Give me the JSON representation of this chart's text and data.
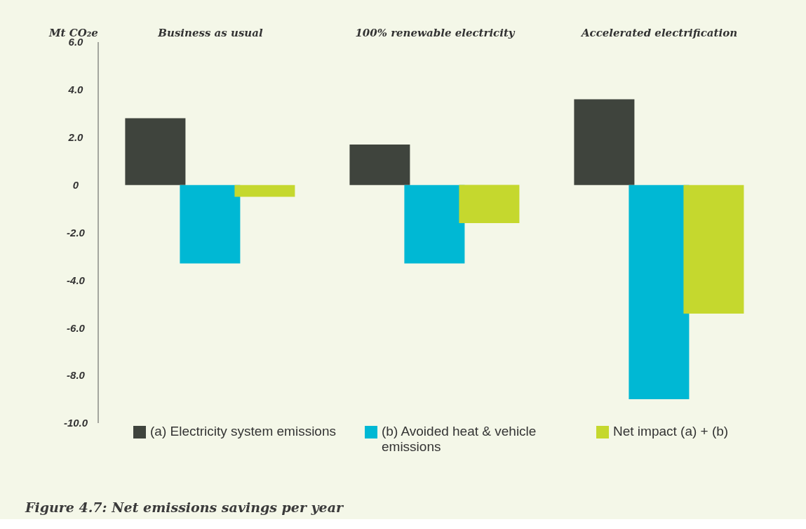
{
  "chart_data": {
    "type": "bar",
    "title": "Figure 4.7: Net emissions savings per year",
    "ylabel": "Mt CO₂e",
    "categories": [
      "Business as usual",
      "100% renewable electricity",
      "Accelerated electrification"
    ],
    "series": [
      {
        "name": "(a) Electricity system emissions",
        "color": "#3f443d",
        "values": [
          2.8,
          1.7,
          3.6
        ]
      },
      {
        "name": "(b) Avoided heat & vehicle emissions",
        "color": "#00b8d4",
        "values": [
          -3.3,
          -3.3,
          -9.0
        ]
      },
      {
        "name": "Net impact (a) + (b)",
        "color": "#c5d82e",
        "values": [
          -0.5,
          -1.6,
          -5.4
        ]
      }
    ],
    "ylim": [
      -10,
      6
    ],
    "yticks": [
      {
        "value": -10,
        "label": "-10.0"
      },
      {
        "value": -8,
        "label": "-8.0"
      },
      {
        "value": -6,
        "label": "-6.0"
      },
      {
        "value": -4,
        "label": "-4.0"
      },
      {
        "value": -2,
        "label": "-2.0"
      },
      0,
      {
        "value": 2,
        "label": "2.0"
      },
      {
        "value": 4,
        "label": "4.0"
      },
      {
        "value": 6,
        "label": "6.0"
      }
    ],
    "grid": false,
    "legend": "bottom"
  }
}
